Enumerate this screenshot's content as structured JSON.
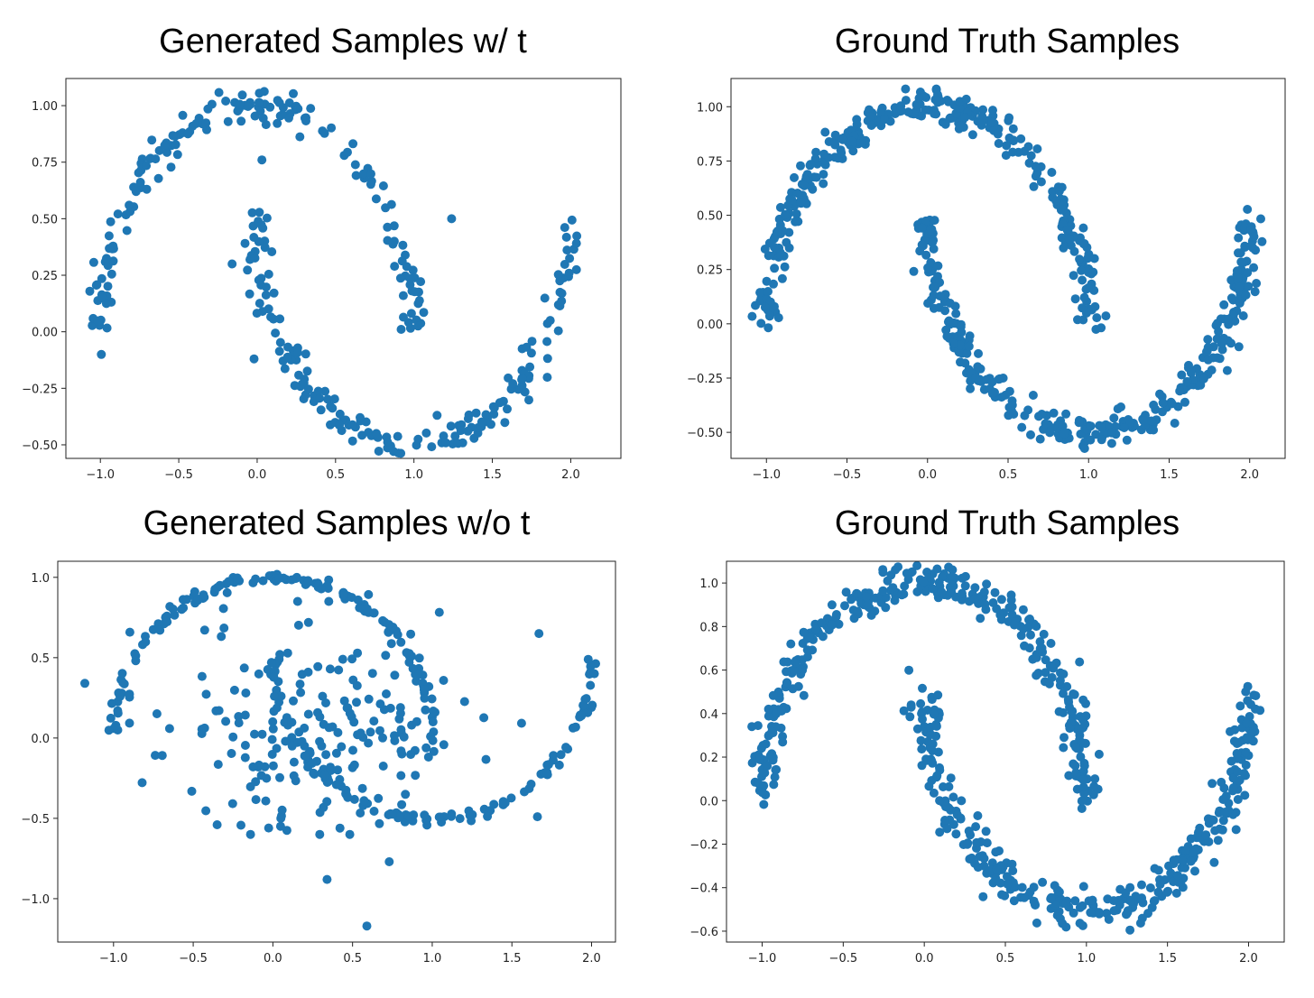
{
  "colors": {
    "point": "#1f77b4",
    "axis": "#222222"
  },
  "chart_data": [
    {
      "type": "scatter",
      "title": "Generated Samples w/ t",
      "xlabel": "",
      "ylabel": "",
      "xlim": [
        -1.22,
        2.32
      ],
      "ylim": [
        -0.56,
        1.12
      ],
      "xticks": [
        -1.0,
        -0.5,
        0.0,
        0.5,
        1.0,
        1.5,
        2.0
      ],
      "xtick_labels": [
        "−1.0",
        "−0.5",
        "0.0",
        "0.5",
        "1.0",
        "1.5",
        "2.0"
      ],
      "yticks": [
        -0.5,
        -0.25,
        0.0,
        0.25,
        0.5,
        0.75,
        1.0
      ],
      "ytick_labels": [
        "−0.50",
        "−0.25",
        "0.00",
        "0.25",
        "0.50",
        "0.75",
        "1.00"
      ],
      "shape": "two-moons",
      "n_upper": 170,
      "n_lower": 180,
      "noise": 0.04,
      "outliers": [
        [
          -0.16,
          0.3
        ],
        [
          0.03,
          0.76
        ],
        [
          1.24,
          0.5
        ],
        [
          -0.02,
          -0.12
        ],
        [
          0.76,
          -0.45
        ]
      ]
    },
    {
      "type": "scatter",
      "title": "Ground Truth Samples",
      "xlabel": "",
      "ylabel": "",
      "xlim": [
        -1.22,
        2.22
      ],
      "ylim": [
        -0.62,
        1.13
      ],
      "xticks": [
        -1.0,
        -0.5,
        0.0,
        0.5,
        1.0,
        1.5,
        2.0
      ],
      "xtick_labels": [
        "−1.0",
        "−0.5",
        "0.0",
        "0.5",
        "1.0",
        "1.5",
        "2.0"
      ],
      "yticks": [
        -0.5,
        -0.25,
        0.0,
        0.25,
        0.5,
        0.75,
        1.0
      ],
      "ytick_labels": [
        "−0.50",
        "−0.25",
        "0.00",
        "0.25",
        "0.50",
        "0.75",
        "1.00"
      ],
      "shape": "two-moons",
      "n_upper": 320,
      "n_lower": 330,
      "noise": 0.04,
      "outliers": []
    },
    {
      "type": "scatter",
      "title": "Generated Samples w/o t",
      "xlabel": "",
      "ylabel": "",
      "xlim": [
        -1.35,
        2.15
      ],
      "ylim": [
        -1.27,
        1.1
      ],
      "xticks": [
        -1.0,
        -0.5,
        0.0,
        0.5,
        1.0,
        1.5,
        2.0
      ],
      "xtick_labels": [
        "−1.0",
        "−0.5",
        "0.0",
        "0.5",
        "1.0",
        "1.5",
        "2.0"
      ],
      "yticks": [
        -1.0,
        -0.5,
        0.0,
        0.5,
        1.0
      ],
      "ytick_labels": [
        "−1.0",
        "−0.5",
        "0.0",
        "0.5",
        "1.0"
      ],
      "shape": "noisy-moons",
      "n_upper": 140,
      "n_lower": 120,
      "n_scatter": 190,
      "noise": 0.02,
      "outliers": [
        [
          -1.18,
          0.34
        ],
        [
          0.34,
          -0.88
        ],
        [
          0.59,
          -1.17
        ],
        [
          0.73,
          -0.77
        ],
        [
          1.67,
          0.65
        ],
        [
          1.66,
          -0.49
        ],
        [
          -0.35,
          -0.54
        ],
        [
          0.05,
          -0.5
        ]
      ]
    },
    {
      "type": "scatter",
      "title": "Ground Truth Samples",
      "xlabel": "",
      "ylabel": "",
      "xlim": [
        -1.22,
        2.22
      ],
      "ylim": [
        -0.65,
        1.1
      ],
      "xticks": [
        -1.0,
        -0.5,
        0.0,
        0.5,
        1.0,
        1.5,
        2.0
      ],
      "xtick_labels": [
        "−1.0",
        "−0.5",
        "0.0",
        "0.5",
        "1.0",
        "1.5",
        "2.0"
      ],
      "yticks": [
        -0.6,
        -0.4,
        -0.2,
        0.0,
        0.2,
        0.4,
        0.6,
        0.8,
        1.0
      ],
      "ytick_labels": [
        "−0.6",
        "−0.4",
        "−0.2",
        "0.0",
        "0.2",
        "0.4",
        "0.6",
        "0.8",
        "1.0"
      ],
      "shape": "two-moons",
      "n_upper": 330,
      "n_lower": 330,
      "noise": 0.045,
      "outliers": []
    }
  ]
}
